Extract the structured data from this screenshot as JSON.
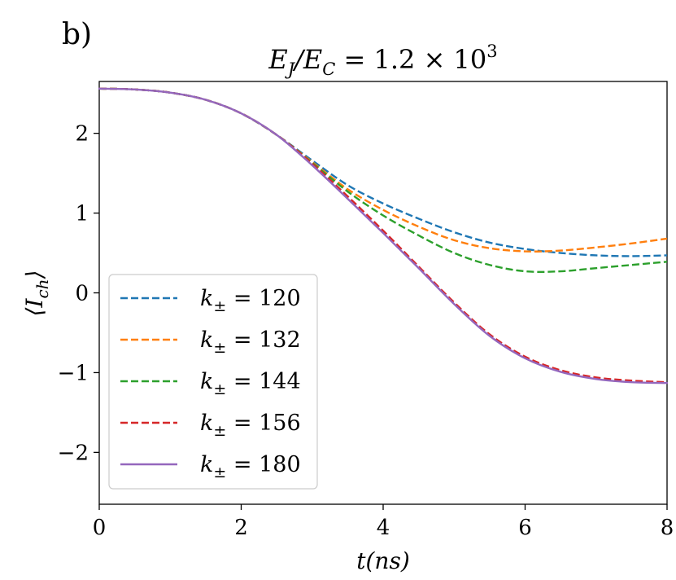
{
  "panel_label": "b)",
  "chart_data": {
    "type": "line",
    "title": "E_J/E_C = 1.2 × 10^3",
    "title_parts": {
      "lhs": "E",
      "sub1": "J",
      "slash": "/E",
      "sub2": "C",
      "eq": " = 1.2 × 10",
      "sup": "3"
    },
    "xlabel": "t(ns)",
    "ylabel": "⟨I_ch⟩",
    "ylabel_parts": {
      "open": "⟨",
      "main": "I",
      "sub": "ch",
      "close": "⟩"
    },
    "xlim": [
      0,
      8
    ],
    "ylim": [
      -2.65,
      2.65
    ],
    "xticks": [
      0,
      2,
      4,
      6,
      8
    ],
    "xtick_labels": [
      "0",
      "2",
      "4",
      "6",
      "8"
    ],
    "yticks": [
      -2,
      -1,
      0,
      1,
      2
    ],
    "ytick_labels": [
      "−2",
      "−1",
      "0",
      "1",
      "2"
    ],
    "legend_position": "lower-left",
    "series": [
      {
        "name": "k± = 120",
        "k_value": "120",
        "color": "#1f77b4",
        "dashed": true,
        "x": [
          0,
          0.5,
          1,
          1.5,
          2,
          2.5,
          3,
          3.5,
          4,
          4.5,
          5,
          5.5,
          6,
          6.5,
          7,
          7.5,
          8
        ],
        "y": [
          2.56,
          2.55,
          2.51,
          2.42,
          2.25,
          1.98,
          1.66,
          1.35,
          1.12,
          0.93,
          0.76,
          0.63,
          0.55,
          0.5,
          0.47,
          0.46,
          0.47
        ]
      },
      {
        "name": "k± = 132",
        "k_value": "132",
        "color": "#ff7f0e",
        "dashed": true,
        "x": [
          0,
          0.5,
          1,
          1.5,
          2,
          2.5,
          3,
          3.5,
          4,
          4.5,
          5,
          5.5,
          6,
          6.5,
          7,
          7.5,
          8
        ],
        "y": [
          2.56,
          2.55,
          2.51,
          2.42,
          2.25,
          1.98,
          1.64,
          1.3,
          1.04,
          0.83,
          0.66,
          0.56,
          0.52,
          0.53,
          0.57,
          0.62,
          0.68
        ]
      },
      {
        "name": "k± = 144",
        "k_value": "144",
        "color": "#2ca02c",
        "dashed": true,
        "x": [
          0,
          0.5,
          1,
          1.5,
          2,
          2.5,
          3,
          3.5,
          4,
          4.5,
          5,
          5.5,
          6,
          6.5,
          7,
          7.5,
          8
        ],
        "y": [
          2.56,
          2.55,
          2.51,
          2.42,
          2.25,
          1.98,
          1.63,
          1.27,
          0.97,
          0.72,
          0.5,
          0.35,
          0.27,
          0.27,
          0.31,
          0.35,
          0.39
        ]
      },
      {
        "name": "k± = 156",
        "k_value": "156",
        "color": "#d62728",
        "dashed": true,
        "x": [
          0,
          0.5,
          1,
          1.5,
          2,
          2.5,
          3,
          3.5,
          4,
          4.5,
          5,
          5.5,
          6,
          6.5,
          7,
          7.5,
          8
        ],
        "y": [
          2.56,
          2.55,
          2.51,
          2.42,
          2.25,
          1.98,
          1.62,
          1.21,
          0.78,
          0.33,
          -0.12,
          -0.52,
          -0.8,
          -0.97,
          -1.06,
          -1.1,
          -1.12
        ]
      },
      {
        "name": "k± = 180",
        "k_value": "180",
        "color": "#9467bd",
        "dashed": false,
        "x": [
          0,
          0.5,
          1,
          1.5,
          2,
          2.5,
          3,
          3.5,
          4,
          4.5,
          5,
          5.5,
          6,
          6.5,
          7,
          7.5,
          8
        ],
        "y": [
          2.56,
          2.55,
          2.51,
          2.42,
          2.25,
          1.98,
          1.6,
          1.18,
          0.75,
          0.31,
          -0.14,
          -0.54,
          -0.82,
          -0.99,
          -1.08,
          -1.12,
          -1.13
        ]
      }
    ]
  }
}
